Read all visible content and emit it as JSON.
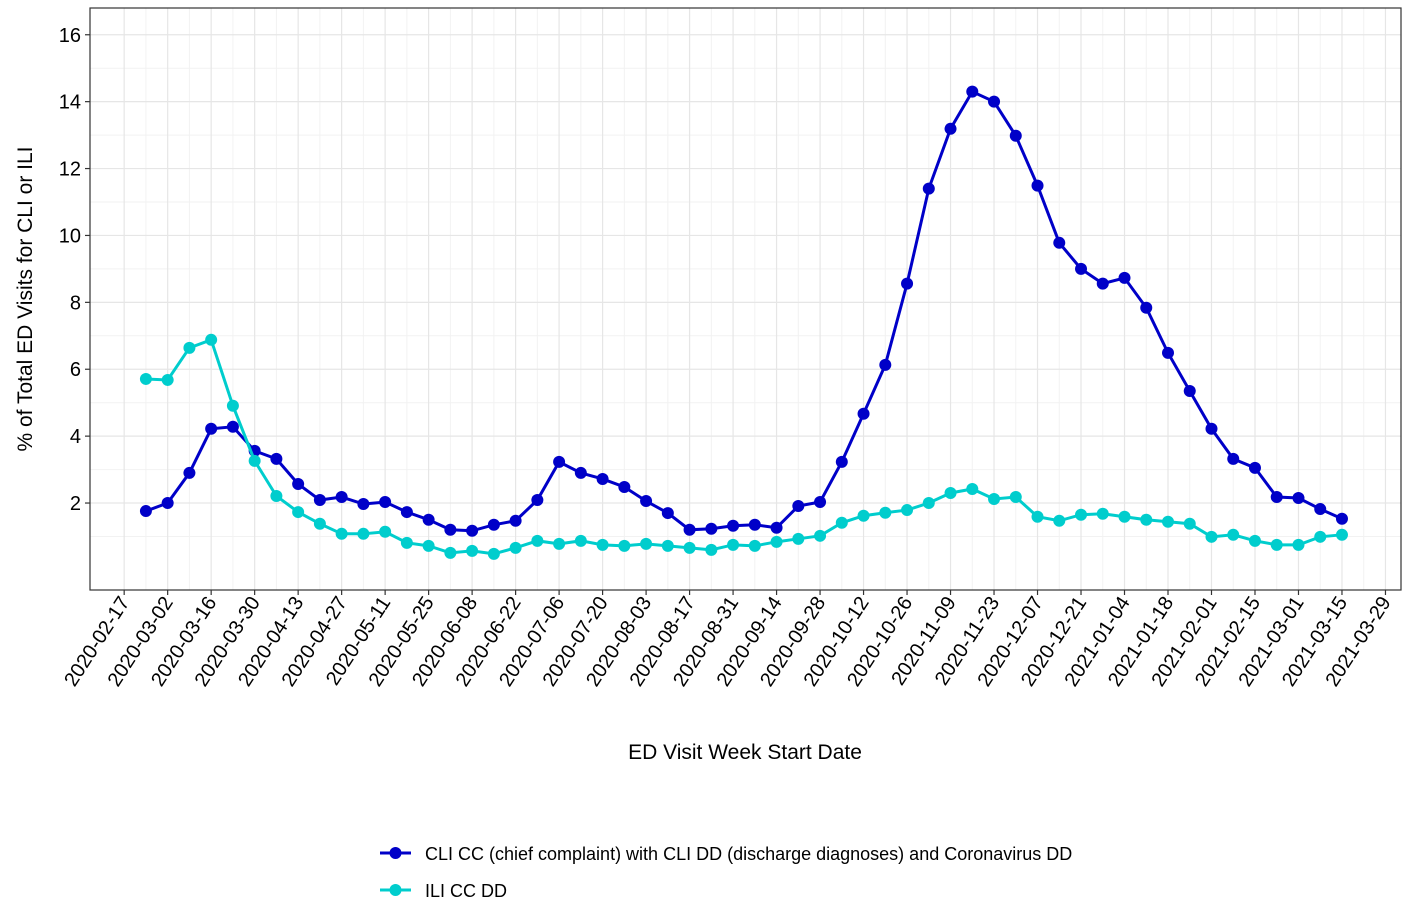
{
  "chart_data": {
    "type": "line",
    "x_label": "ED Visit Week Start Date",
    "y_label": "% of Total ED Visits for CLI or ILI",
    "x": [
      "2020-02-24",
      "2020-03-02",
      "2020-03-09",
      "2020-03-16",
      "2020-03-23",
      "2020-03-30",
      "2020-04-06",
      "2020-04-13",
      "2020-04-20",
      "2020-04-27",
      "2020-05-04",
      "2020-05-11",
      "2020-05-18",
      "2020-05-25",
      "2020-06-01",
      "2020-06-08",
      "2020-06-15",
      "2020-06-22",
      "2020-06-29",
      "2020-07-06",
      "2020-07-13",
      "2020-07-20",
      "2020-07-27",
      "2020-08-03",
      "2020-08-10",
      "2020-08-17",
      "2020-08-24",
      "2020-08-31",
      "2020-09-07",
      "2020-09-14",
      "2020-09-21",
      "2020-09-28",
      "2020-10-05",
      "2020-10-12",
      "2020-10-19",
      "2020-10-26",
      "2020-11-02",
      "2020-11-09",
      "2020-11-16",
      "2020-11-23",
      "2020-11-30",
      "2020-12-07",
      "2020-12-14",
      "2020-12-21",
      "2020-12-28",
      "2021-01-04",
      "2021-01-11",
      "2021-01-18",
      "2021-01-25",
      "2021-02-01",
      "2021-02-08",
      "2021-02-15",
      "2021-02-22",
      "2021-03-01",
      "2021-03-08",
      "2021-03-15"
    ],
    "series": [
      {
        "name": "CLI CC (chief complaint) with CLI DD (discharge diagnoses) and Coronavirus DD",
        "color": "#0000c8",
        "values": [
          1.76,
          2.0,
          2.9,
          4.22,
          4.28,
          3.56,
          3.32,
          2.57,
          2.09,
          2.18,
          1.97,
          2.03,
          1.73,
          1.5,
          1.2,
          1.17,
          1.35,
          1.47,
          2.09,
          3.23,
          2.9,
          2.72,
          2.48,
          2.06,
          1.7,
          1.2,
          1.23,
          1.32,
          1.35,
          1.26,
          1.91,
          2.03,
          3.23,
          4.67,
          6.13,
          8.56,
          11.4,
          13.19,
          14.3,
          14.0,
          12.98,
          11.49,
          9.78,
          9.0,
          8.56,
          8.73,
          7.84,
          6.49,
          5.35,
          4.22,
          3.32,
          3.05,
          2.18,
          2.15,
          1.82,
          1.53
        ]
      },
      {
        "name": "ILI CC DD",
        "color": "#00cdcd",
        "values": [
          5.71,
          5.68,
          6.64,
          6.88,
          4.91,
          3.26,
          2.21,
          1.73,
          1.38,
          1.08,
          1.08,
          1.14,
          0.81,
          0.72,
          0.51,
          0.57,
          0.48,
          0.66,
          0.87,
          0.78,
          0.87,
          0.75,
          0.72,
          0.78,
          0.72,
          0.66,
          0.6,
          0.75,
          0.72,
          0.84,
          0.93,
          1.02,
          1.41,
          1.62,
          1.71,
          1.79,
          2.0,
          2.3,
          2.42,
          2.12,
          2.18,
          1.59,
          1.47,
          1.65,
          1.68,
          1.59,
          1.5,
          1.44,
          1.38,
          0.99,
          1.05,
          0.87,
          0.75,
          0.75,
          0.99,
          1.05
        ]
      }
    ],
    "xlim": [
      "2020-02-06",
      "2021-04-03"
    ],
    "xticks": [
      "2020-02-17",
      "2020-03-02",
      "2020-03-16",
      "2020-03-30",
      "2020-04-13",
      "2020-04-27",
      "2020-05-11",
      "2020-05-25",
      "2020-06-08",
      "2020-06-22",
      "2020-07-06",
      "2020-07-20",
      "2020-08-03",
      "2020-08-17",
      "2020-08-31",
      "2020-09-14",
      "2020-09-28",
      "2020-10-12",
      "2020-10-26",
      "2020-11-09",
      "2020-11-23",
      "2020-12-07",
      "2020-12-21",
      "2021-01-04",
      "2021-01-18",
      "2021-02-01",
      "2021-02-15",
      "2021-03-01",
      "2021-03-15",
      "2021-03-29"
    ],
    "ylim": [
      -0.6,
      16.8
    ],
    "yticks": [
      2,
      4,
      6,
      8,
      10,
      12,
      14,
      16
    ],
    "grid": true,
    "legend": "bottom"
  }
}
